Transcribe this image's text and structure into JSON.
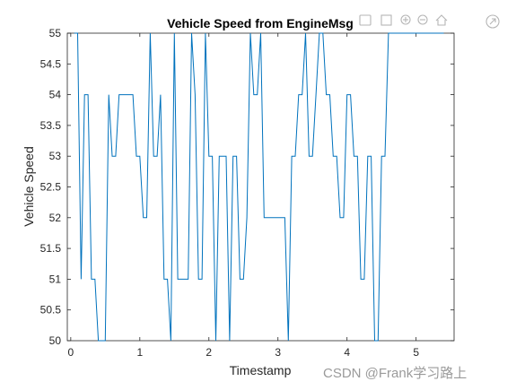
{
  "window": {
    "watermark": "CSDN @Frank学习路上",
    "toolbar_icons": [
      "data-tips-icon",
      "brush-icon",
      "zoom-in-icon",
      "zoom-out-icon",
      "home-icon",
      "export-icon"
    ]
  },
  "chart_data": {
    "type": "line",
    "title": "Vehicle Speed from EngineMsg",
    "xlabel": "Timestamp",
    "ylabel": "Vehicle Speed",
    "xlim": [
      -0.05,
      5.55
    ],
    "ylim": [
      50,
      55
    ],
    "xticks": [
      0,
      1,
      2,
      3,
      4,
      5
    ],
    "xtick_labels": [
      "0",
      "1",
      "2",
      "3",
      "4",
      "5"
    ],
    "yticks": [
      50,
      50.5,
      51,
      51.5,
      52,
      52.5,
      53,
      53.5,
      54,
      54.5,
      55
    ],
    "ytick_labels": [
      "50",
      "50.5",
      "51",
      "51.5",
      "52",
      "52.5",
      "53",
      "53.5",
      "54",
      "54.5",
      "55"
    ],
    "grid": false,
    "line_color": "#0072BD",
    "series": [
      {
        "x": [
          0.05,
          0.1,
          0.15,
          0.2,
          0.25,
          0.3,
          0.35,
          0.4,
          0.45,
          0.5,
          0.55,
          0.6,
          0.65,
          0.7,
          0.75,
          0.8,
          0.85,
          0.9,
          0.95,
          1.0,
          1.05,
          1.1,
          1.15,
          1.2,
          1.25,
          1.3,
          1.35,
          1.4,
          1.45,
          1.5,
          1.55,
          1.6,
          1.65,
          1.7,
          1.75,
          1.8,
          1.85,
          1.9,
          1.95,
          2.0,
          2.05,
          2.1,
          2.15,
          2.2,
          2.25,
          2.3,
          2.35,
          2.4,
          2.45,
          2.5,
          2.55,
          2.6,
          2.65,
          2.7,
          2.75,
          2.8,
          2.85,
          2.9,
          2.95,
          3.0,
          3.05,
          3.1,
          3.15,
          3.2,
          3.25,
          3.3,
          3.35,
          3.4,
          3.45,
          3.5,
          3.55,
          3.6,
          3.65,
          3.7,
          3.75,
          3.8,
          3.85,
          3.9,
          3.95,
          4.0,
          4.05,
          4.1,
          4.15,
          4.2,
          4.25,
          4.3,
          4.35,
          4.4,
          4.45,
          4.5,
          4.55,
          4.6,
          4.65,
          4.7,
          4.75,
          4.8,
          4.85,
          4.9,
          4.95,
          5.0,
          5.05,
          5.1,
          5.15,
          5.2,
          5.25,
          5.3,
          5.35,
          5.4
        ],
        "values": [
          55,
          55,
          51,
          54,
          54,
          51,
          51,
          50,
          50,
          50,
          54,
          53,
          53,
          54,
          54,
          54,
          54,
          54,
          53,
          53,
          52,
          52,
          55,
          53,
          53,
          54,
          51,
          51,
          50,
          55,
          51,
          51,
          51,
          51,
          55,
          54,
          51,
          51,
          55,
          53,
          53,
          50,
          53,
          53,
          53,
          50,
          53,
          53,
          51,
          51,
          52,
          55,
          54,
          54,
          55,
          52,
          52,
          52,
          52,
          52,
          52,
          52,
          50,
          53,
          53,
          54,
          54,
          55,
          53,
          53,
          54,
          55,
          55,
          54,
          54,
          53,
          53,
          52,
          52,
          54,
          54,
          53,
          53,
          51,
          51,
          53,
          53,
          50,
          50,
          53,
          53,
          55,
          55,
          55,
          55,
          55,
          55,
          55,
          55,
          55,
          55,
          55,
          55,
          55,
          55,
          55,
          55,
          55
        ]
      }
    ]
  }
}
